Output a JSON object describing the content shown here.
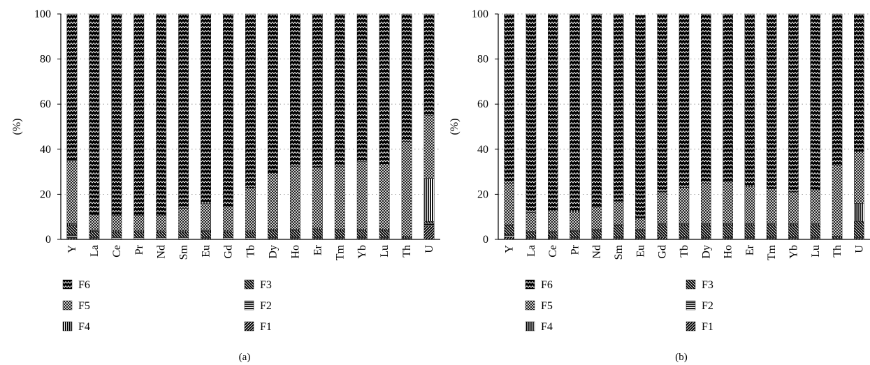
{
  "chart_data": [
    {
      "panel_label": "(a)",
      "type": "bar",
      "stacked": true,
      "ylabel": "(%)",
      "ylim": [
        0,
        100
      ],
      "yticks": [
        0,
        20,
        40,
        60,
        80,
        100
      ],
      "grid": "horizontal dotted",
      "categories": [
        "Y",
        "La",
        "Ce",
        "Pr",
        "Nd",
        "Sm",
        "Eu",
        "Gd",
        "Tb",
        "Dy",
        "Ho",
        "Er",
        "Tm",
        "Yb",
        "Lu",
        "Th",
        "U"
      ],
      "series": [
        {
          "name": "F1",
          "values": [
            0.5,
            0.5,
            0.3,
            0.3,
            0.3,
            0.3,
            0.5,
            0.3,
            0.3,
            0.5,
            0.5,
            0.5,
            0.5,
            0.5,
            0.5,
            0.3,
            6
          ]
        },
        {
          "name": "F2",
          "values": [
            1.5,
            0.5,
            0.5,
            0.5,
            0.5,
            0.5,
            0.5,
            0.5,
            0.5,
            0.5,
            0.5,
            0.5,
            0.5,
            0.5,
            0.5,
            0.2,
            1
          ]
        },
        {
          "name": "F3",
          "values": [
            4,
            2.5,
            2.5,
            2.5,
            2.5,
            2.5,
            2.5,
            2.5,
            2.5,
            3,
            3,
            3.5,
            3,
            3,
            3,
            0.5,
            1
          ]
        },
        {
          "name": "F4",
          "values": [
            1,
            0.5,
            0.5,
            0.5,
            0.5,
            0.5,
            0.5,
            0.5,
            0.5,
            0.5,
            0.5,
            0.5,
            0.5,
            0.5,
            0.5,
            0.5,
            19
          ]
        },
        {
          "name": "F5",
          "values": [
            28,
            7,
            7,
            7,
            7,
            10,
            12,
            11,
            19,
            25,
            28,
            27,
            28,
            30,
            29,
            42,
            28
          ]
        },
        {
          "name": "F6",
          "values": [
            65,
            89,
            89.2,
            89.2,
            89.2,
            86.2,
            84,
            85.2,
            77.2,
            70.5,
            67.5,
            68,
            67.5,
            65.5,
            66.5,
            56.5,
            45
          ]
        }
      ]
    },
    {
      "panel_label": "(b)",
      "type": "bar",
      "stacked": true,
      "ylabel": "(%)",
      "ylim": [
        0,
        100
      ],
      "yticks": [
        0,
        20,
        40,
        60,
        80,
        100
      ],
      "grid": "horizontal dotted",
      "categories": [
        "Y",
        "La",
        "Ce",
        "Pr",
        "Nd",
        "Sm",
        "Eu",
        "Gd",
        "Tb",
        "Dy",
        "Ho",
        "Er",
        "Tm",
        "Yb",
        "Lu",
        "Th",
        "U"
      ],
      "series": [
        {
          "name": "F1",
          "values": [
            1,
            0.5,
            0.5,
            0.5,
            0.5,
            0.5,
            0.5,
            1,
            0.5,
            0.5,
            0.5,
            0.5,
            0.5,
            0.5,
            0.5,
            0.3,
            0.5
          ]
        },
        {
          "name": "F2",
          "values": [
            1,
            0.5,
            0.5,
            0.5,
            0.5,
            0.5,
            0.5,
            0.5,
            0.5,
            0.5,
            0.5,
            0.5,
            0.5,
            0.5,
            0.5,
            0.2,
            0.5
          ]
        },
        {
          "name": "F3",
          "values": [
            4,
            2,
            2,
            2.5,
            3,
            5,
            3,
            5,
            5.5,
            5.5,
            5.5,
            5.5,
            5.5,
            5.5,
            5.5,
            0.5,
            7
          ]
        },
        {
          "name": "F4",
          "values": [
            0.5,
            0.5,
            0.5,
            0.5,
            0.5,
            0.5,
            0.5,
            0.5,
            0.5,
            0.5,
            0.5,
            0.5,
            0.5,
            0.5,
            0.5,
            0.5,
            8
          ]
        },
        {
          "name": "F5",
          "values": [
            18.5,
            8.5,
            9.5,
            8.5,
            10,
            10.5,
            5,
            14,
            16,
            18,
            18.5,
            16.5,
            15.5,
            14,
            14.5,
            31.5,
            23
          ]
        },
        {
          "name": "F6",
          "values": [
            75,
            88,
            87,
            87.5,
            85.5,
            83,
            90,
            79,
            77,
            75,
            74.5,
            76.5,
            77.5,
            79,
            78.5,
            67,
            61
          ]
        }
      ]
    }
  ],
  "legend": {
    "left_column": [
      "F6",
      "F5",
      "F4"
    ],
    "right_column": [
      "F3",
      "F2",
      "F1"
    ]
  },
  "patterns": {
    "F1": "diagonal-heavy",
    "F2": "horizontal-stripes",
    "F3": "backslash-diagonal",
    "F4": "vertical-stripes",
    "F5": "crosshatch-light",
    "F6": "zigzag-dark"
  },
  "colors": {
    "ink": "#000000",
    "paper": "#ffffff",
    "grid": "#888888"
  }
}
